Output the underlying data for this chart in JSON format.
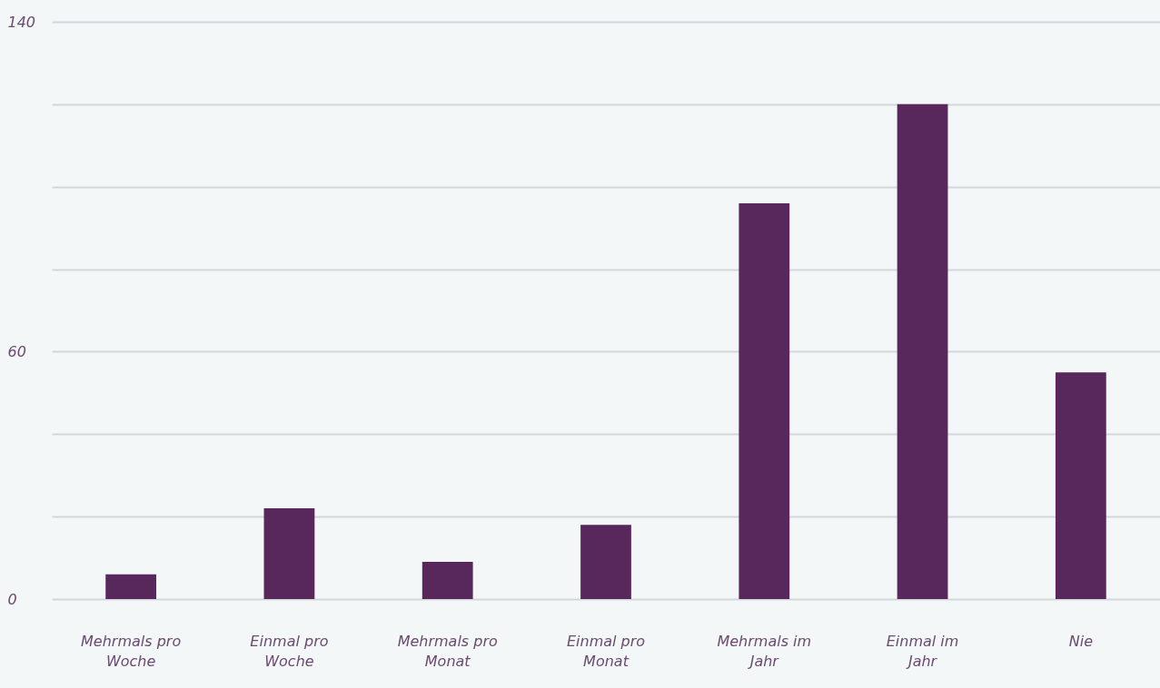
{
  "chart_data": {
    "type": "bar",
    "categories": [
      "Mehrmals pro Woche",
      "Einmal pro Woche",
      "Mehrmals pro Monat",
      "Einmal pro Monat",
      "Mehrmals im Jahr",
      "Einmal im Jahr",
      "Nie"
    ],
    "values": [
      6,
      22,
      9,
      18,
      96,
      120,
      55
    ],
    "color": "#58285c",
    "ylim": [
      0,
      140
    ],
    "yticks": [
      0,
      {
        "value": 20,
        "label": null
      },
      {
        "value": 40,
        "label": null
      },
      60,
      {
        "value": 80,
        "label": null
      },
      {
        "value": 100,
        "label": null
      },
      {
        "value": 120,
        "label": null
      },
      140
    ],
    "grid": "y"
  }
}
